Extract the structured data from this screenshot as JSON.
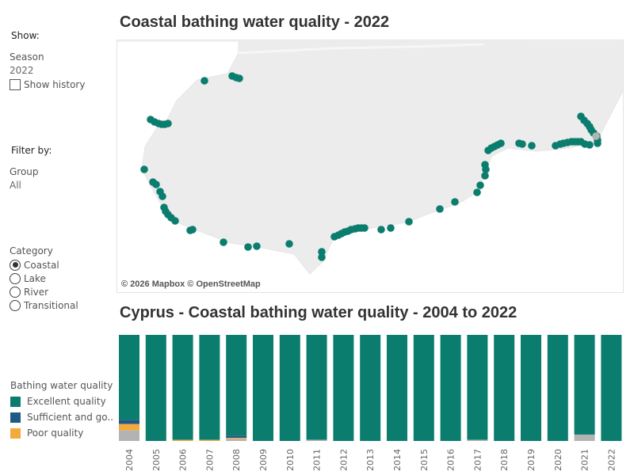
{
  "sidebar": {
    "show_heading": "Show:",
    "season_label": "Season",
    "season_value": "2022",
    "show_history_label": "Show history",
    "filter_heading": "Filter by:",
    "group_label": "Group",
    "group_value": "All",
    "category_label": "Category",
    "category_options": [
      {
        "label": "Coastal",
        "selected": true
      },
      {
        "label": "Lake",
        "selected": false
      },
      {
        "label": "River",
        "selected": false
      },
      {
        "label": "Transitional",
        "selected": false
      }
    ],
    "legend_title": "Bathing water quality",
    "legend_items": [
      {
        "label": "Excellent quality",
        "color": "#0a7d6e"
      },
      {
        "label": "Sufficient and go..",
        "color": "#1f5a86"
      },
      {
        "label": "Poor quality",
        "color": "#f2aa3b"
      }
    ]
  },
  "map": {
    "title": "Coastal bathing water quality - 2022",
    "attribution": "© 2026 Mapbox © OpenStreetMap",
    "site_color": "#0a7d6e",
    "unclassified_color": "#b3b3b3"
  },
  "chart_title": "Cyprus - Coastal bathing water quality - 2004 to 2022",
  "chart_data": {
    "type": "bar",
    "stacked": true,
    "normalized": true,
    "title": "Cyprus - Coastal bathing water quality - 2004 to 2022",
    "categories": [
      "2004",
      "2005",
      "2006",
      "2007",
      "2008",
      "2009",
      "2010",
      "2011",
      "2012",
      "2013",
      "2014",
      "2015",
      "2016",
      "2017",
      "2018",
      "2019",
      "2020",
      "2021",
      "2022"
    ],
    "ylim": [
      0,
      100
    ],
    "series": [
      {
        "name": "Excellent quality",
        "color": "#0a7d6e",
        "values": [
          80,
          100,
          99,
          99,
          95,
          100,
          100,
          99,
          100,
          100,
          100,
          100,
          100,
          99,
          100,
          100,
          100,
          94,
          100
        ]
      },
      {
        "name": "Sufficient and go..",
        "color": "#1f5a86",
        "values": [
          4,
          0,
          0,
          0,
          2,
          0,
          0,
          0,
          0,
          0,
          0,
          0,
          0,
          0,
          0,
          0,
          0,
          0,
          0
        ]
      },
      {
        "name": "Poor quality",
        "color": "#f2aa3b",
        "values": [
          6,
          0,
          1,
          1,
          1,
          0,
          0,
          0,
          0,
          0,
          0,
          0,
          0,
          0,
          0,
          0,
          0,
          0,
          0
        ]
      },
      {
        "color": "#b3b3b3",
        "values": [
          10,
          0,
          0,
          0,
          2,
          0,
          0,
          1,
          0,
          0,
          0,
          0,
          0,
          1,
          0,
          0,
          0,
          6,
          0
        ]
      }
    ]
  }
}
